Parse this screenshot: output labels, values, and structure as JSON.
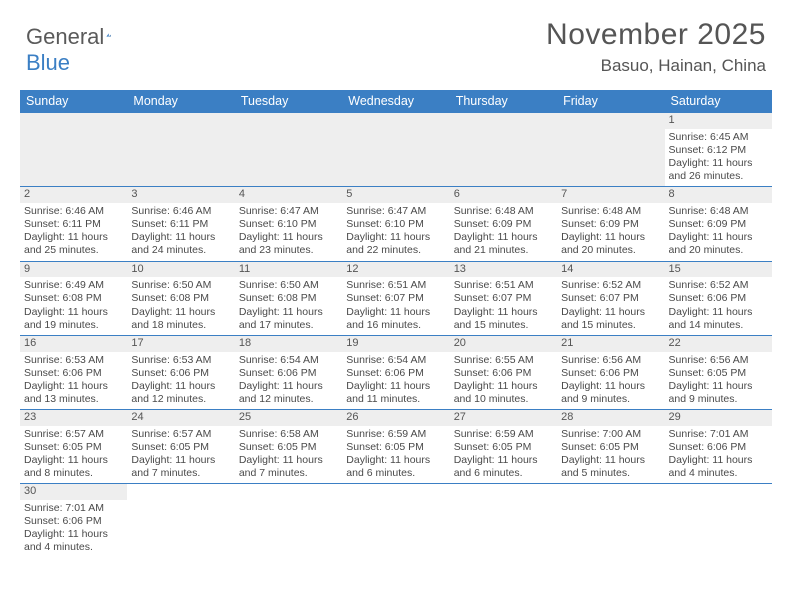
{
  "logo": {
    "word1": "General",
    "word2": "Blue"
  },
  "header": {
    "month": "November 2025",
    "location": "Basuo, Hainan, China"
  },
  "calendar": {
    "type": "table",
    "header_bg": "#3b7fc4",
    "header_fg": "#ffffff",
    "border_color": "#3b7fc4",
    "band_bg": "#eeeeee",
    "background_color": "#ffffff",
    "text_color": "#4a4a4a",
    "font_family": "Arial",
    "cell_fontsize": 10.5,
    "header_fontsize": 12.5,
    "columns": [
      "Sunday",
      "Monday",
      "Tuesday",
      "Wednesday",
      "Thursday",
      "Friday",
      "Saturday"
    ],
    "weeks": [
      [
        null,
        null,
        null,
        null,
        null,
        null,
        {
          "d": "1",
          "sr": "Sunrise: 6:45 AM",
          "ss": "Sunset: 6:12 PM",
          "dl1": "Daylight: 11 hours",
          "dl2": "and 26 minutes."
        }
      ],
      [
        {
          "d": "2",
          "sr": "Sunrise: 6:46 AM",
          "ss": "Sunset: 6:11 PM",
          "dl1": "Daylight: 11 hours",
          "dl2": "and 25 minutes."
        },
        {
          "d": "3",
          "sr": "Sunrise: 6:46 AM",
          "ss": "Sunset: 6:11 PM",
          "dl1": "Daylight: 11 hours",
          "dl2": "and 24 minutes."
        },
        {
          "d": "4",
          "sr": "Sunrise: 6:47 AM",
          "ss": "Sunset: 6:10 PM",
          "dl1": "Daylight: 11 hours",
          "dl2": "and 23 minutes."
        },
        {
          "d": "5",
          "sr": "Sunrise: 6:47 AM",
          "ss": "Sunset: 6:10 PM",
          "dl1": "Daylight: 11 hours",
          "dl2": "and 22 minutes."
        },
        {
          "d": "6",
          "sr": "Sunrise: 6:48 AM",
          "ss": "Sunset: 6:09 PM",
          "dl1": "Daylight: 11 hours",
          "dl2": "and 21 minutes."
        },
        {
          "d": "7",
          "sr": "Sunrise: 6:48 AM",
          "ss": "Sunset: 6:09 PM",
          "dl1": "Daylight: 11 hours",
          "dl2": "and 20 minutes."
        },
        {
          "d": "8",
          "sr": "Sunrise: 6:48 AM",
          "ss": "Sunset: 6:09 PM",
          "dl1": "Daylight: 11 hours",
          "dl2": "and 20 minutes."
        }
      ],
      [
        {
          "d": "9",
          "sr": "Sunrise: 6:49 AM",
          "ss": "Sunset: 6:08 PM",
          "dl1": "Daylight: 11 hours",
          "dl2": "and 19 minutes."
        },
        {
          "d": "10",
          "sr": "Sunrise: 6:50 AM",
          "ss": "Sunset: 6:08 PM",
          "dl1": "Daylight: 11 hours",
          "dl2": "and 18 minutes."
        },
        {
          "d": "11",
          "sr": "Sunrise: 6:50 AM",
          "ss": "Sunset: 6:08 PM",
          "dl1": "Daylight: 11 hours",
          "dl2": "and 17 minutes."
        },
        {
          "d": "12",
          "sr": "Sunrise: 6:51 AM",
          "ss": "Sunset: 6:07 PM",
          "dl1": "Daylight: 11 hours",
          "dl2": "and 16 minutes."
        },
        {
          "d": "13",
          "sr": "Sunrise: 6:51 AM",
          "ss": "Sunset: 6:07 PM",
          "dl1": "Daylight: 11 hours",
          "dl2": "and 15 minutes."
        },
        {
          "d": "14",
          "sr": "Sunrise: 6:52 AM",
          "ss": "Sunset: 6:07 PM",
          "dl1": "Daylight: 11 hours",
          "dl2": "and 15 minutes."
        },
        {
          "d": "15",
          "sr": "Sunrise: 6:52 AM",
          "ss": "Sunset: 6:06 PM",
          "dl1": "Daylight: 11 hours",
          "dl2": "and 14 minutes."
        }
      ],
      [
        {
          "d": "16",
          "sr": "Sunrise: 6:53 AM",
          "ss": "Sunset: 6:06 PM",
          "dl1": "Daylight: 11 hours",
          "dl2": "and 13 minutes."
        },
        {
          "d": "17",
          "sr": "Sunrise: 6:53 AM",
          "ss": "Sunset: 6:06 PM",
          "dl1": "Daylight: 11 hours",
          "dl2": "and 12 minutes."
        },
        {
          "d": "18",
          "sr": "Sunrise: 6:54 AM",
          "ss": "Sunset: 6:06 PM",
          "dl1": "Daylight: 11 hours",
          "dl2": "and 12 minutes."
        },
        {
          "d": "19",
          "sr": "Sunrise: 6:54 AM",
          "ss": "Sunset: 6:06 PM",
          "dl1": "Daylight: 11 hours",
          "dl2": "and 11 minutes."
        },
        {
          "d": "20",
          "sr": "Sunrise: 6:55 AM",
          "ss": "Sunset: 6:06 PM",
          "dl1": "Daylight: 11 hours",
          "dl2": "and 10 minutes."
        },
        {
          "d": "21",
          "sr": "Sunrise: 6:56 AM",
          "ss": "Sunset: 6:06 PM",
          "dl1": "Daylight: 11 hours",
          "dl2": "and 9 minutes."
        },
        {
          "d": "22",
          "sr": "Sunrise: 6:56 AM",
          "ss": "Sunset: 6:05 PM",
          "dl1": "Daylight: 11 hours",
          "dl2": "and 9 minutes."
        }
      ],
      [
        {
          "d": "23",
          "sr": "Sunrise: 6:57 AM",
          "ss": "Sunset: 6:05 PM",
          "dl1": "Daylight: 11 hours",
          "dl2": "and 8 minutes."
        },
        {
          "d": "24",
          "sr": "Sunrise: 6:57 AM",
          "ss": "Sunset: 6:05 PM",
          "dl1": "Daylight: 11 hours",
          "dl2": "and 7 minutes."
        },
        {
          "d": "25",
          "sr": "Sunrise: 6:58 AM",
          "ss": "Sunset: 6:05 PM",
          "dl1": "Daylight: 11 hours",
          "dl2": "and 7 minutes."
        },
        {
          "d": "26",
          "sr": "Sunrise: 6:59 AM",
          "ss": "Sunset: 6:05 PM",
          "dl1": "Daylight: 11 hours",
          "dl2": "and 6 minutes."
        },
        {
          "d": "27",
          "sr": "Sunrise: 6:59 AM",
          "ss": "Sunset: 6:05 PM",
          "dl1": "Daylight: 11 hours",
          "dl2": "and 6 minutes."
        },
        {
          "d": "28",
          "sr": "Sunrise: 7:00 AM",
          "ss": "Sunset: 6:05 PM",
          "dl1": "Daylight: 11 hours",
          "dl2": "and 5 minutes."
        },
        {
          "d": "29",
          "sr": "Sunrise: 7:01 AM",
          "ss": "Sunset: 6:06 PM",
          "dl1": "Daylight: 11 hours",
          "dl2": "and 4 minutes."
        }
      ],
      [
        {
          "d": "30",
          "sr": "Sunrise: 7:01 AM",
          "ss": "Sunset: 6:06 PM",
          "dl1": "Daylight: 11 hours",
          "dl2": "and 4 minutes."
        },
        null,
        null,
        null,
        null,
        null,
        null
      ]
    ]
  }
}
